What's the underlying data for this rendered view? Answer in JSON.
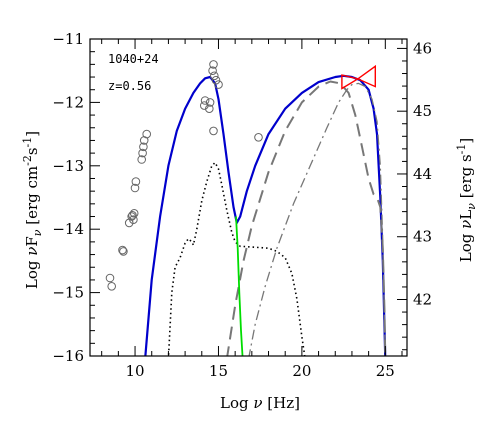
{
  "chart_data": {
    "type": "line",
    "annotations": [
      "1040+24",
      "z=0.56"
    ],
    "xlabel_parts": [
      "Log ",
      "ν",
      " [Hz]"
    ],
    "ylabel_parts": [
      "Log ",
      "ν",
      "F",
      "ν",
      " [erg cm",
      "-2",
      "s",
      "-1",
      "]"
    ],
    "y2label_parts": [
      "Log ",
      "ν",
      "L",
      "ν",
      " [erg s",
      "-1",
      "]"
    ],
    "xlim": [
      7.3,
      26.3
    ],
    "ylim": [
      -16,
      -11
    ],
    "y2lim": [
      41.1,
      46.15
    ],
    "xticks": [
      10,
      15,
      20,
      25
    ],
    "yticks": [
      -16,
      -15,
      -14,
      -13,
      -12,
      -11
    ],
    "y2ticks": [
      42,
      43,
      44,
      45,
      46
    ],
    "data_points": [
      [
        8.5,
        -14.77
      ],
      [
        8.6,
        -14.9
      ],
      [
        9.25,
        -14.33
      ],
      [
        9.3,
        -14.35
      ],
      [
        9.65,
        -13.9
      ],
      [
        9.8,
        -13.8
      ],
      [
        9.85,
        -13.78
      ],
      [
        9.9,
        -13.85
      ],
      [
        9.95,
        -13.75
      ],
      [
        10.0,
        -13.35
      ],
      [
        10.05,
        -13.25
      ],
      [
        10.4,
        -12.9
      ],
      [
        10.45,
        -12.8
      ],
      [
        10.5,
        -12.7
      ],
      [
        10.55,
        -12.6
      ],
      [
        10.7,
        -12.5
      ],
      [
        14.15,
        -12.05
      ],
      [
        14.2,
        -11.97
      ],
      [
        14.5,
        -12.0
      ],
      [
        14.45,
        -12.1
      ],
      [
        14.65,
        -11.5
      ],
      [
        14.7,
        -11.4
      ],
      [
        14.75,
        -11.58
      ],
      [
        14.85,
        -11.65
      ],
      [
        15.0,
        -11.72
      ],
      [
        14.7,
        -12.45
      ],
      [
        17.4,
        -12.55
      ]
    ],
    "series": [
      {
        "style": "solid",
        "color": "#0000cc",
        "points": [
          [
            10.6,
            -16.05
          ],
          [
            11.0,
            -14.8
          ],
          [
            11.5,
            -13.8
          ],
          [
            12.0,
            -13.0
          ],
          [
            12.5,
            -12.45
          ],
          [
            13.0,
            -12.1
          ],
          [
            13.5,
            -11.85
          ],
          [
            13.9,
            -11.7
          ],
          [
            14.2,
            -11.62
          ],
          [
            14.5,
            -11.6
          ],
          [
            14.8,
            -11.7
          ],
          [
            15.0,
            -11.95
          ],
          [
            15.3,
            -12.5
          ],
          [
            15.6,
            -13.1
          ],
          [
            15.9,
            -13.65
          ],
          [
            16.1,
            -13.9
          ],
          [
            16.3,
            -13.8
          ],
          [
            16.7,
            -13.4
          ],
          [
            17.2,
            -13.0
          ],
          [
            18.0,
            -12.5
          ],
          [
            19.0,
            -12.1
          ],
          [
            20.0,
            -11.85
          ],
          [
            21.0,
            -11.68
          ],
          [
            22.0,
            -11.6
          ],
          [
            22.5,
            -11.58
          ],
          [
            23.0,
            -11.6
          ],
          [
            23.5,
            -11.65
          ],
          [
            24.0,
            -11.8
          ],
          [
            24.3,
            -12.1
          ],
          [
            24.5,
            -12.5
          ],
          [
            24.7,
            -13.5
          ],
          [
            24.85,
            -14.5
          ],
          [
            25.0,
            -16.05
          ]
        ]
      },
      {
        "style": "dotted",
        "color": "#000000",
        "points": [
          [
            12.0,
            -16.05
          ],
          [
            12.2,
            -15.0
          ],
          [
            12.4,
            -14.6
          ],
          [
            12.7,
            -14.45
          ],
          [
            13.0,
            -14.22
          ],
          [
            13.2,
            -14.15
          ],
          [
            13.4,
            -14.2
          ],
          [
            13.5,
            -14.25
          ],
          [
            13.7,
            -14.0
          ],
          [
            14.0,
            -13.55
          ],
          [
            14.3,
            -13.25
          ],
          [
            14.6,
            -13.0
          ],
          [
            14.8,
            -12.95
          ],
          [
            15.0,
            -13.05
          ],
          [
            15.2,
            -13.3
          ],
          [
            15.5,
            -13.7
          ],
          [
            15.8,
            -14.05
          ],
          [
            16.0,
            -14.2
          ],
          [
            16.3,
            -14.27
          ],
          [
            17.0,
            -14.28
          ],
          [
            18.0,
            -14.3
          ],
          [
            18.5,
            -14.35
          ],
          [
            19.0,
            -14.45
          ],
          [
            19.4,
            -14.7
          ],
          [
            19.7,
            -15.1
          ],
          [
            20.0,
            -15.7
          ],
          [
            20.2,
            -16.05
          ]
        ]
      },
      {
        "style": "dashed",
        "color": "#777777",
        "points": [
          [
            15.5,
            -16.05
          ],
          [
            16.0,
            -15.2
          ],
          [
            16.5,
            -14.5
          ],
          [
            17.0,
            -13.95
          ],
          [
            18.0,
            -13.1
          ],
          [
            19.0,
            -12.45
          ],
          [
            20.0,
            -12.0
          ],
          [
            21.0,
            -11.75
          ],
          [
            21.7,
            -11.67
          ],
          [
            22.3,
            -11.7
          ],
          [
            22.8,
            -11.85
          ],
          [
            23.2,
            -12.2
          ],
          [
            23.6,
            -12.7
          ],
          [
            24.0,
            -13.2
          ],
          [
            24.3,
            -13.45
          ],
          [
            24.5,
            -13.5
          ],
          [
            24.7,
            -13.65
          ],
          [
            24.85,
            -14.3
          ],
          [
            24.95,
            -15.3
          ],
          [
            25.0,
            -16.05
          ]
        ]
      },
      {
        "style": "dashdot",
        "color": "#777777",
        "points": [
          [
            16.8,
            -16.05
          ],
          [
            17.2,
            -15.5
          ],
          [
            17.8,
            -14.9
          ],
          [
            18.5,
            -14.3
          ],
          [
            19.5,
            -13.6
          ],
          [
            20.5,
            -13.0
          ],
          [
            21.5,
            -12.4
          ],
          [
            22.2,
            -12.0
          ],
          [
            22.7,
            -11.8
          ],
          [
            23.0,
            -11.72
          ],
          [
            23.4,
            -11.7
          ],
          [
            23.8,
            -11.75
          ],
          [
            24.2,
            -11.95
          ],
          [
            24.5,
            -12.3
          ],
          [
            24.7,
            -13.0
          ],
          [
            24.85,
            -14.2
          ],
          [
            25.0,
            -16.05
          ]
        ]
      },
      {
        "style": "solid",
        "color": "#00dd00",
        "points": [
          [
            16.05,
            -13.8
          ],
          [
            16.15,
            -14.3
          ],
          [
            16.25,
            -15.0
          ],
          [
            16.35,
            -15.6
          ],
          [
            16.45,
            -16.05
          ]
        ]
      }
    ],
    "bowtie": {
      "color": "#ff0000",
      "left": [
        22.4,
        -11.57,
        -11.78
      ],
      "right": [
        24.4,
        -11.43,
        -11.75
      ],
      "center": [
        23.35,
        -11.63
      ]
    }
  }
}
